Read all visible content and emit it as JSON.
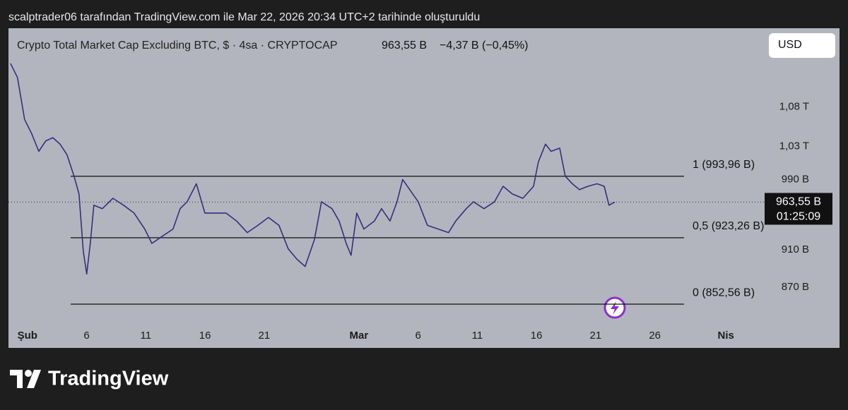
{
  "caption": "scalptrader06 tarafından TradingView.com ile Mar 22, 2026 20:34 UTC+2 tarihinde oluşturuldu",
  "header": {
    "title": "Crypto Total Market Cap Excluding BTC, $ · 4sa · CRYPTOCAP",
    "price": "963,55 B",
    "change": "−4,37 B (−0,45%)"
  },
  "currency_button": "USD",
  "brand": "TradingView",
  "chart_data": {
    "type": "line",
    "log_scale": true,
    "xlim": [
      -0.6,
      69.6
    ],
    "xticks": [
      {
        "value": 1,
        "label": "Şub"
      },
      6,
      11,
      16,
      21,
      {
        "value": 29,
        "label": "Mar"
      },
      {
        "value": 34,
        "label": "6"
      },
      {
        "value": 39,
        "label": "11"
      },
      {
        "value": 44,
        "label": "16"
      },
      {
        "value": 49,
        "label": "21"
      },
      {
        "value": 54,
        "label": "26"
      },
      {
        "value": 60,
        "label": "Nis"
      }
    ],
    "ylim": [
      809,
      1187
    ],
    "yticks": [
      {
        "value": 870,
        "label": "870 B"
      },
      {
        "value": 910,
        "label": "910 B"
      },
      {
        "value": 990,
        "label": "990 B"
      },
      {
        "value": 1030,
        "label": "1,03 T"
      },
      {
        "value": 1080,
        "label": "1,08 T"
      }
    ],
    "series": [
      {
        "name": "CRYPTOCAP",
        "color": "#3a2c7e",
        "x": [
          -0.43,
          0.16,
          0.76,
          1.36,
          1.96,
          2.55,
          3.15,
          3.75,
          4.34,
          4.94,
          5.36,
          5.72,
          6.01,
          6.31,
          6.61,
          7.33,
          8.22,
          9.12,
          10.01,
          10.91,
          11.51,
          12.4,
          13.3,
          13.9,
          14.49,
          15.27,
          15.99,
          16.88,
          17.78,
          18.67,
          19.57,
          20.46,
          21.36,
          22.25,
          23.03,
          23.75,
          24.46,
          25.24,
          25.84,
          26.73,
          27.33,
          27.93,
          28.34,
          28.82,
          29.42,
          30.31,
          30.91,
          31.63,
          32.22,
          32.7,
          33.3,
          34.01,
          34.79,
          35.69,
          36.58,
          37.18,
          38.07,
          38.67,
          39.57,
          40.46,
          41.18,
          41.96,
          42.85,
          43.75,
          44.16,
          44.76,
          45.24,
          45.96,
          46.43,
          47.03,
          47.63,
          48.34,
          49.12,
          49.72,
          50.13,
          50.61
        ],
        "values": [
          1138,
          1119,
          1064,
          1046,
          1024,
          1037,
          1041,
          1033,
          1020,
          994,
          973,
          908,
          884,
          917,
          960,
          956,
          968,
          960,
          951,
          933,
          917,
          925,
          933,
          956,
          964,
          985,
          951,
          951,
          951,
          942,
          929,
          937,
          946,
          937,
          911,
          900,
          892,
          921,
          964,
          956,
          942,
          917,
          904,
          951,
          933,
          942,
          956,
          942,
          964,
          990,
          978,
          964,
          937,
          933,
          929,
          942,
          956,
          964,
          956,
          964,
          982,
          973,
          968,
          982,
          1011,
          1033,
          1024,
          1028,
          994,
          985,
          978,
          982,
          985,
          982,
          960,
          963.55
        ]
      }
    ],
    "levels": [
      {
        "value": 993.96,
        "label": "1 (993,96 B)"
      },
      {
        "value": 923.26,
        "label": "0,5 (923,26 B)"
      },
      {
        "value": 852.56,
        "label": "0 (852,56 B)"
      }
    ],
    "price_tag": {
      "value": 963.55,
      "label": "963,55 B"
    },
    "countdown": "01:25:09"
  }
}
